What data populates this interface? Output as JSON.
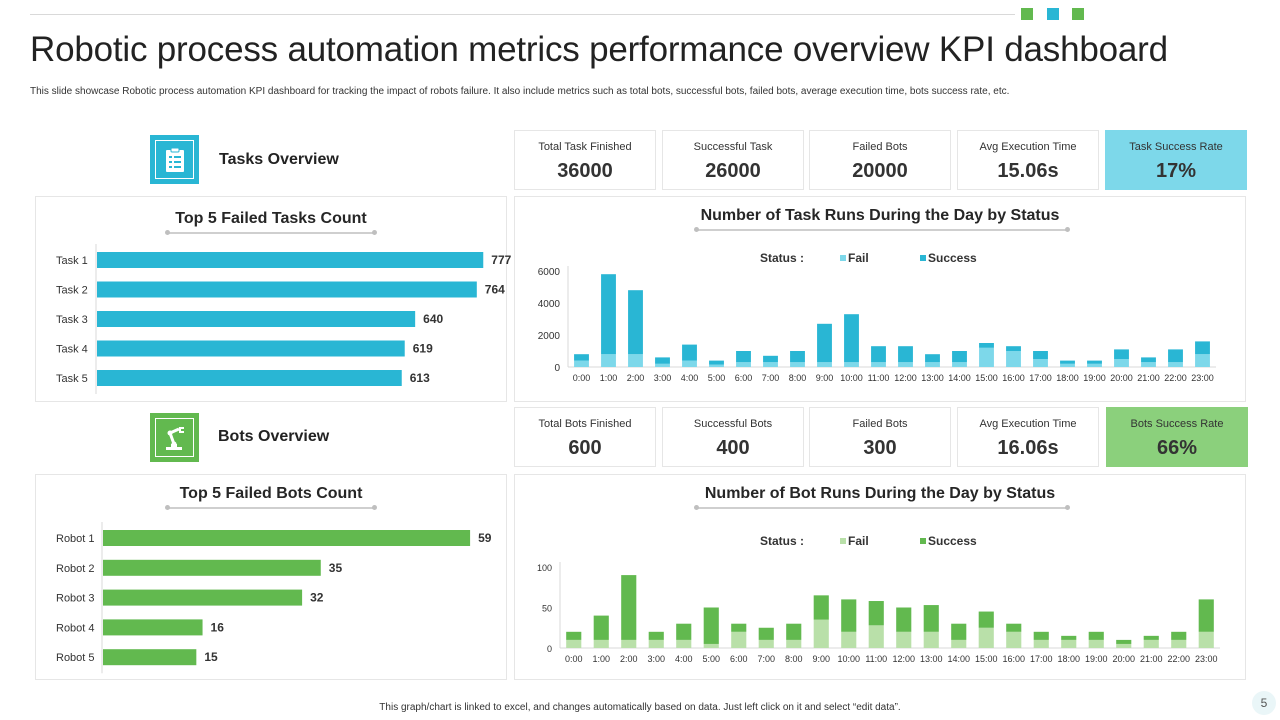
{
  "title": "Robotic process automation metrics performance overview KPI dashboard",
  "subtitle": "This slide showcase Robotic process automation KPI dashboard for tracking the impact of robots failure. It also include metrics such as total bots, successful bots, failed bots, average execution time, bots success rate, etc.",
  "footer": "This graph/chart is linked to excel, and changes automatically based on data. Just left click on it and select “edit data”.",
  "page_number": "5",
  "colors": {
    "blue": "#29b6d4",
    "light_blue": "#7dd8ea",
    "green": "#62b94f",
    "light_green": "#b9e0a9"
  },
  "tasks": {
    "section_title": "Tasks Overview",
    "icon": "clipboard-icon",
    "kpis": [
      {
        "label": "Total Task Finished",
        "value": "36000"
      },
      {
        "label": "Successful Task",
        "value": "26000"
      },
      {
        "label": "Failed Bots",
        "value": "20000"
      },
      {
        "label": "Avg Execution Time",
        "value": "15.06s"
      },
      {
        "label": "Task Success Rate",
        "value": "17%"
      }
    ]
  },
  "bots": {
    "section_title": "Bots Overview",
    "icon": "robot-arm-icon",
    "kpis": [
      {
        "label": "Total Bots Finished",
        "value": "600"
      },
      {
        "label": "Successful Bots",
        "value": "400"
      },
      {
        "label": "Failed Bots",
        "value": "300"
      },
      {
        "label": "Avg Execution Time",
        "value": "16.06s"
      },
      {
        "label": "Bots Success Rate",
        "value": "66%"
      }
    ]
  },
  "chart_data": [
    {
      "id": "failed_tasks",
      "type": "bar",
      "orientation": "horizontal",
      "title": "Top 5 Failed Tasks Count",
      "categories": [
        "Task 1",
        "Task 2",
        "Task 3",
        "Task 4",
        "Task 5"
      ],
      "values": [
        777,
        764,
        640,
        619,
        613
      ],
      "xlim": [
        0,
        800
      ]
    },
    {
      "id": "task_runs",
      "type": "bar",
      "stacked": true,
      "title": "Number of Task Runs During the Day by Status",
      "legend_label": "Status :",
      "categories": [
        "0:00",
        "1:00",
        "2:00",
        "3:00",
        "4:00",
        "5:00",
        "6:00",
        "7:00",
        "8:00",
        "9:00",
        "10:00",
        "11:00",
        "12:00",
        "13:00",
        "14:00",
        "15:00",
        "16:00",
        "17:00",
        "18:00",
        "19:00",
        "20:00",
        "21:00",
        "22:00",
        "23:00"
      ],
      "series": [
        {
          "name": "Fail",
          "values": [
            400,
            800,
            800,
            200,
            400,
            150,
            300,
            300,
            300,
            300,
            300,
            300,
            300,
            300,
            300,
            1200,
            1000,
            500,
            200,
            200,
            500,
            300,
            300,
            800
          ]
        },
        {
          "name": "Success",
          "values": [
            400,
            5000,
            4000,
            400,
            1000,
            250,
            700,
            400,
            700,
            2400,
            3000,
            1000,
            1000,
            500,
            700,
            300,
            300,
            500,
            200,
            200,
            600,
            300,
            800,
            800
          ]
        }
      ],
      "yticks": [
        0,
        2000,
        4000,
        6000
      ],
      "ylim": [
        0,
        6000
      ]
    },
    {
      "id": "failed_bots",
      "type": "bar",
      "orientation": "horizontal",
      "title": "Top 5 Failed Bots Count",
      "categories": [
        "Robot 1",
        "Robot 2",
        "Robot 3",
        "Robot 4",
        "Robot 5"
      ],
      "values": [
        59,
        35,
        32,
        16,
        15
      ],
      "xlim": [
        0,
        60
      ]
    },
    {
      "id": "bot_runs",
      "type": "bar",
      "stacked": true,
      "title": "Number of Bot Runs During the Day by Status",
      "legend_label": "Status :",
      "categories": [
        "0:00",
        "1:00",
        "2:00",
        "3:00",
        "4:00",
        "5:00",
        "6:00",
        "7:00",
        "8:00",
        "9:00",
        "10:00",
        "11:00",
        "12:00",
        "13:00",
        "14:00",
        "15:00",
        "16:00",
        "17:00",
        "18:00",
        "19:00",
        "20:00",
        "21:00",
        "22:00",
        "23:00"
      ],
      "series": [
        {
          "name": "Fail",
          "values": [
            10,
            10,
            10,
            10,
            10,
            5,
            20,
            10,
            10,
            35,
            20,
            28,
            20,
            20,
            10,
            25,
            20,
            10,
            10,
            10,
            5,
            10,
            10,
            20
          ]
        },
        {
          "name": "Success",
          "values": [
            10,
            30,
            80,
            10,
            20,
            45,
            10,
            15,
            20,
            30,
            40,
            30,
            30,
            33,
            20,
            20,
            10,
            10,
            5,
            10,
            5,
            5,
            10,
            40
          ]
        }
      ],
      "yticks": [
        0,
        50,
        100
      ],
      "ylim": [
        0,
        100
      ]
    }
  ]
}
